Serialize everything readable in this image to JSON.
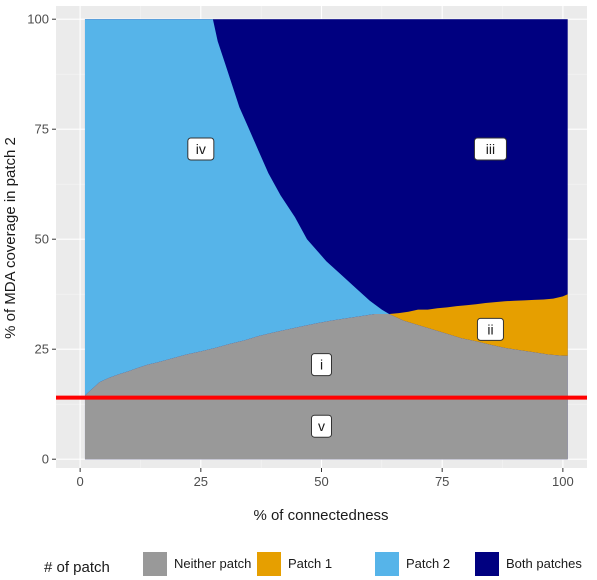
{
  "chart_data": {
    "type": "area",
    "title": "",
    "xlabel": "% of connectedness",
    "ylabel": "% of MDA coverage in patch 2",
    "xlim": [
      -5,
      105
    ],
    "ylim": [
      -2,
      103
    ],
    "x_ticks": [
      0,
      25,
      50,
      75,
      100
    ],
    "y_ticks": [
      0,
      25,
      50,
      75,
      100
    ],
    "grid": true,
    "legend": {
      "title": "# of patch",
      "placement": "bottom",
      "entries": [
        {
          "name": "Neither patch",
          "color": "#999999"
        },
        {
          "name": "Patch 1",
          "color": "#E69F00"
        },
        {
          "name": "Patch 2",
          "color": "#56B4E9"
        },
        {
          "name": "Both patches",
          "color": "#000080"
        }
      ]
    },
    "colors": {
      "neither": "#999999",
      "patch1": "#E69F00",
      "patch2": "#56B4E9",
      "both": "#000080",
      "threshold_line": "#ff0000",
      "panel_bg": "#ebebeb"
    },
    "boundaries": {
      "gray_top": {
        "x": [
          1,
          2,
          3,
          4,
          6,
          8,
          10,
          12,
          14,
          16,
          18,
          20,
          22,
          25,
          28,
          31,
          34,
          37,
          40,
          43,
          46,
          49,
          52,
          55,
          58,
          61,
          64,
          67,
          70,
          73,
          76,
          79,
          82,
          85,
          88,
          91,
          94,
          97,
          100,
          101
        ],
        "y": [
          14.5,
          15.5,
          16.5,
          17.5,
          18.5,
          19.3,
          20,
          20.8,
          21.5,
          22,
          22.6,
          23.2,
          23.8,
          24.5,
          25.3,
          26.2,
          27,
          28,
          28.8,
          29.5,
          30.2,
          30.9,
          31.5,
          32,
          32.5,
          33,
          33,
          31.5,
          30.5,
          29.5,
          28.5,
          27.5,
          26.8,
          26,
          25.3,
          24.8,
          24.3,
          23.8,
          23.5,
          23.5
        ]
      },
      "blue_right": {
        "y": [
          100,
          95,
          90,
          85,
          80,
          75,
          70,
          65,
          60,
          55,
          50,
          45,
          42,
          39,
          36,
          34,
          33
        ],
        "x": [
          27.5,
          28.5,
          30,
          31.5,
          33,
          35,
          37,
          39,
          41.5,
          44.5,
          47,
          51,
          54,
          57,
          60,
          62.5,
          64
        ]
      },
      "orange_top": {
        "x": [
          64,
          66,
          68,
          70,
          72,
          74,
          76,
          78,
          80,
          82,
          84,
          86,
          88,
          90,
          92,
          94,
          96,
          98,
          100,
          101
        ],
        "y": [
          33,
          33.2,
          33.5,
          34,
          34,
          34.3,
          34.5,
          34.8,
          35,
          35.2,
          35.5,
          35.7,
          35.9,
          36,
          36.1,
          36.2,
          36.3,
          36.5,
          37,
          37.5
        ]
      }
    },
    "threshold_y": 14,
    "region_labels": [
      {
        "text": "i",
        "x": 50,
        "y": 21.5
      },
      {
        "text": "ii",
        "x": 85,
        "y": 29.5
      },
      {
        "text": "iii",
        "x": 85,
        "y": 70.5
      },
      {
        "text": "iv",
        "x": 25,
        "y": 70.5
      },
      {
        "text": "v",
        "x": 50,
        "y": 7.5
      }
    ]
  }
}
